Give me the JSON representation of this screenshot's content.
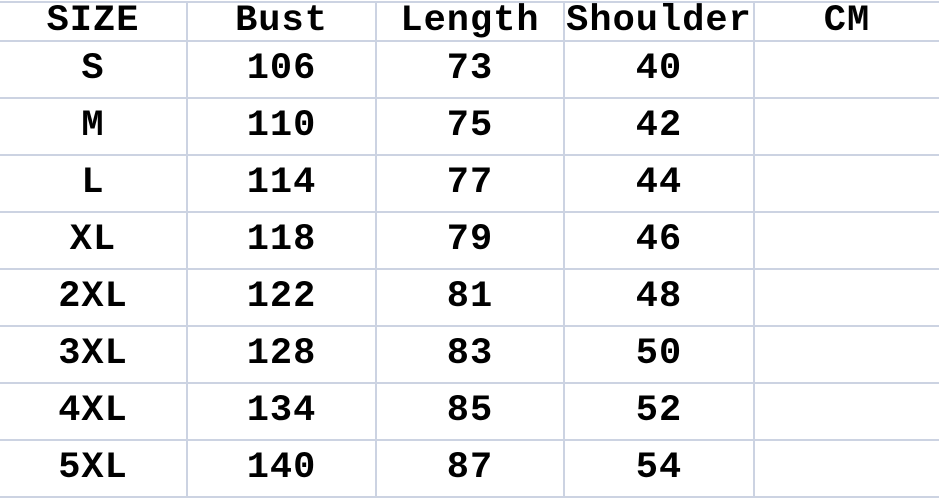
{
  "colors": {
    "border": "#ccd3e2",
    "text": "#000000",
    "background": "#ffffff"
  },
  "chart_data": {
    "type": "table",
    "columns": [
      "SIZE",
      "Bust",
      "Length",
      "Shoulder",
      "CM"
    ],
    "rows": [
      [
        "S",
        "106",
        "73",
        "40",
        ""
      ],
      [
        "M",
        "110",
        "75",
        "42",
        ""
      ],
      [
        "L",
        "114",
        "77",
        "44",
        ""
      ],
      [
        "XL",
        "118",
        "79",
        "46",
        ""
      ],
      [
        "2XL",
        "122",
        "81",
        "48",
        ""
      ],
      [
        "3XL",
        "128",
        "83",
        "50",
        ""
      ],
      [
        "4XL",
        "134",
        "85",
        "52",
        ""
      ],
      [
        "5XL",
        "140",
        "87",
        "54",
        ""
      ]
    ],
    "layout": {
      "grid": true,
      "unit_column_header": "CM",
      "empty_last_column": true
    }
  }
}
